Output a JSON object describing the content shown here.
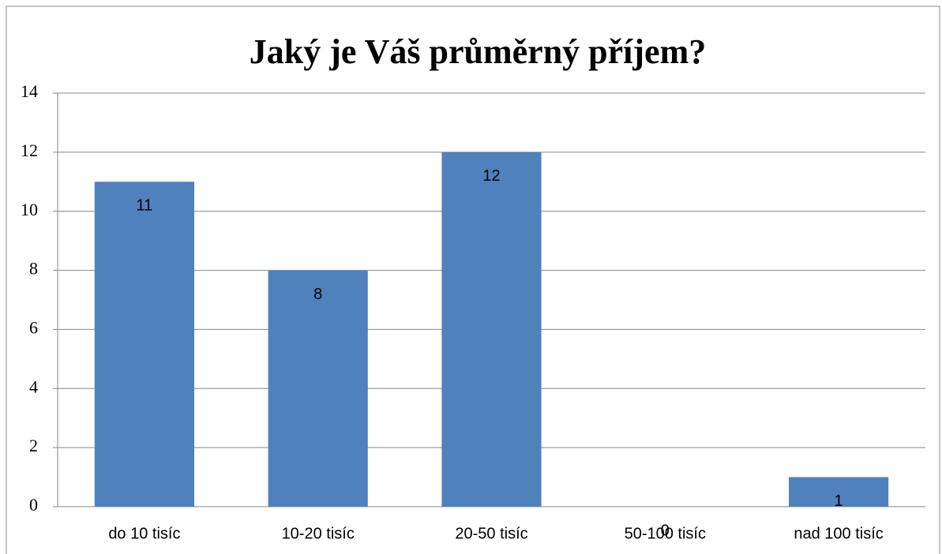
{
  "chart_data": {
    "type": "bar",
    "title": "Jaký je Váš průměrný příjem?",
    "categories": [
      "do 10 tisíc",
      "10-20 tisíc",
      "20-50 tisíc",
      "50-100 tisíc",
      "nad 100 tisíc"
    ],
    "values": [
      11,
      8,
      12,
      0,
      1
    ],
    "color": "#4f81bd",
    "ylim": [
      0,
      14
    ],
    "yticks": [
      0,
      2,
      4,
      6,
      8,
      10,
      12,
      14
    ],
    "grid": true,
    "data_labels": true
  }
}
